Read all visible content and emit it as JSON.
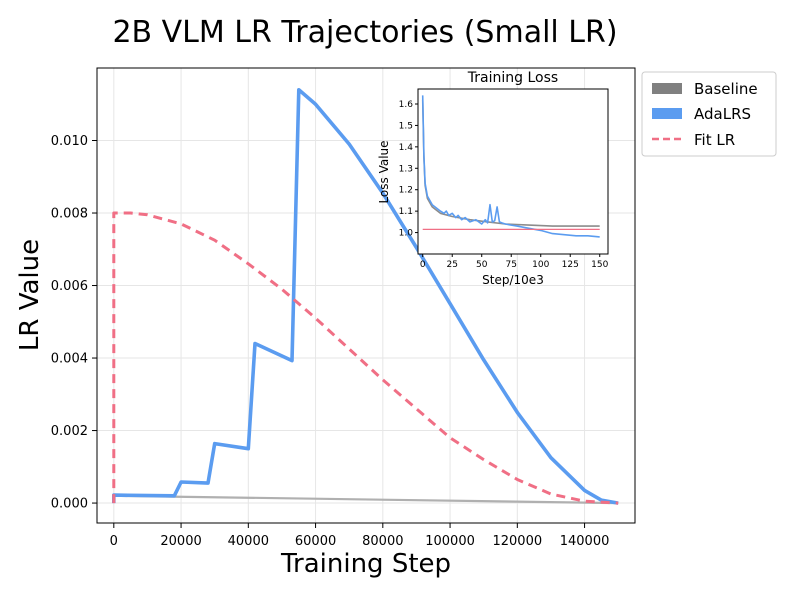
{
  "chart_data": [
    {
      "type": "line",
      "title": "2B VLM LR Trajectories (Small LR)",
      "xlabel": "Training Step",
      "ylabel": "LR Value",
      "xlim": [
        -5000,
        155000
      ],
      "ylim": [
        -0.00055,
        0.012
      ],
      "xticks": [
        0,
        20000,
        40000,
        60000,
        80000,
        100000,
        120000,
        140000
      ],
      "xtick_labels": [
        "0",
        "20000",
        "40000",
        "60000",
        "80000",
        "100000",
        "120000",
        "140000"
      ],
      "yticks": [
        0.0,
        0.002,
        0.004,
        0.006,
        0.008,
        0.01
      ],
      "ytick_labels": [
        "0.000",
        "0.002",
        "0.004",
        "0.006",
        "0.008",
        "0.010"
      ],
      "grid": true,
      "legend": {
        "position": "outside-top-right",
        "entries": [
          {
            "label": "Baseline",
            "style": "patch",
            "color": "#808080"
          },
          {
            "label": "AdaLRS",
            "style": "patch",
            "color": "#5b9cf0"
          },
          {
            "label": "Fit LR",
            "style": "dashed",
            "color": "#f06f85"
          }
        ]
      },
      "series": [
        {
          "name": "Baseline",
          "color": "#b0b0b0",
          "x": [
            0,
            150000
          ],
          "y": [
            0.0002,
            0.0
          ]
        },
        {
          "name": "AdaLRS",
          "color": "#5b9cf0",
          "x": [
            0,
            0,
            18000,
            20000,
            28000,
            30000,
            40000,
            42000,
            53000,
            55000,
            60000,
            70000,
            80000,
            90000,
            100000,
            110000,
            120000,
            130000,
            140000,
            145000,
            150000
          ],
          "y": [
            0.0,
            0.00022,
            0.0002,
            0.00058,
            0.00055,
            0.00164,
            0.0015,
            0.0044,
            0.00393,
            0.0114,
            0.011,
            0.0099,
            0.00855,
            0.00705,
            0.0055,
            0.00395,
            0.0025,
            0.00125,
            0.00035,
            8e-05,
            0.0
          ]
        },
        {
          "name": "Fit LR",
          "color": "#f06f85",
          "x": [
            0,
            0,
            5000,
            10000,
            20000,
            30000,
            40000,
            50000,
            60000,
            70000,
            80000,
            90000,
            100000,
            110000,
            120000,
            130000,
            140000,
            150000
          ],
          "y": [
            0.0,
            0.008,
            0.008,
            0.00795,
            0.0077,
            0.00725,
            0.0066,
            0.0059,
            0.0051,
            0.00425,
            0.0034,
            0.0026,
            0.0018,
            0.0012,
            0.00065,
            0.00025,
            5e-05,
            0.0
          ]
        }
      ]
    },
    {
      "type": "line",
      "title": "Training Loss",
      "xlabel": "Step/10e3",
      "ylabel": "Loss Value",
      "xlim": [
        -4,
        157
      ],
      "ylim": [
        0.9,
        1.67
      ],
      "xticks": [
        0,
        25,
        50,
        75,
        100,
        125,
        150
      ],
      "xtick_labels": [
        "0",
        "25",
        "50",
        "75",
        "100",
        "125",
        "150"
      ],
      "yticks": [
        1.0,
        1.1,
        1.2,
        1.3,
        1.4,
        1.5,
        1.6
      ],
      "ytick_labels": [
        "1.0",
        "1.1",
        "1.2",
        "1.3",
        "1.4",
        "1.5",
        "1.6"
      ],
      "series": [
        {
          "name": "Baseline",
          "color": "#8c8c8c",
          "x": [
            0,
            1,
            2,
            4,
            8,
            15,
            25,
            40,
            55,
            70,
            90,
            110,
            130,
            150
          ],
          "y": [
            1.62,
            1.35,
            1.22,
            1.16,
            1.12,
            1.09,
            1.075,
            1.06,
            1.05,
            1.04,
            1.035,
            1.03,
            1.03,
            1.03
          ]
        },
        {
          "name": "AdaLRS",
          "color": "#5b9cf0",
          "x": [
            0,
            1,
            2,
            4,
            8,
            15,
            18,
            20,
            22,
            25,
            28,
            30,
            33,
            36,
            40,
            45,
            50,
            53,
            55,
            57,
            59,
            61,
            63,
            65,
            67,
            70,
            75,
            80,
            90,
            100,
            110,
            120,
            130,
            140,
            150
          ],
          "y": [
            1.64,
            1.36,
            1.23,
            1.17,
            1.13,
            1.1,
            1.09,
            1.1,
            1.08,
            1.09,
            1.07,
            1.08,
            1.06,
            1.07,
            1.05,
            1.06,
            1.04,
            1.06,
            1.045,
            1.13,
            1.05,
            1.055,
            1.12,
            1.05,
            1.045,
            1.04,
            1.035,
            1.03,
            1.02,
            1.01,
            0.995,
            0.99,
            0.985,
            0.985,
            0.98
          ]
        },
        {
          "name": "Fit LR",
          "color": "#f06f85",
          "x": [
            0,
            150
          ],
          "y": [
            1.015,
            1.015
          ]
        }
      ]
    }
  ]
}
